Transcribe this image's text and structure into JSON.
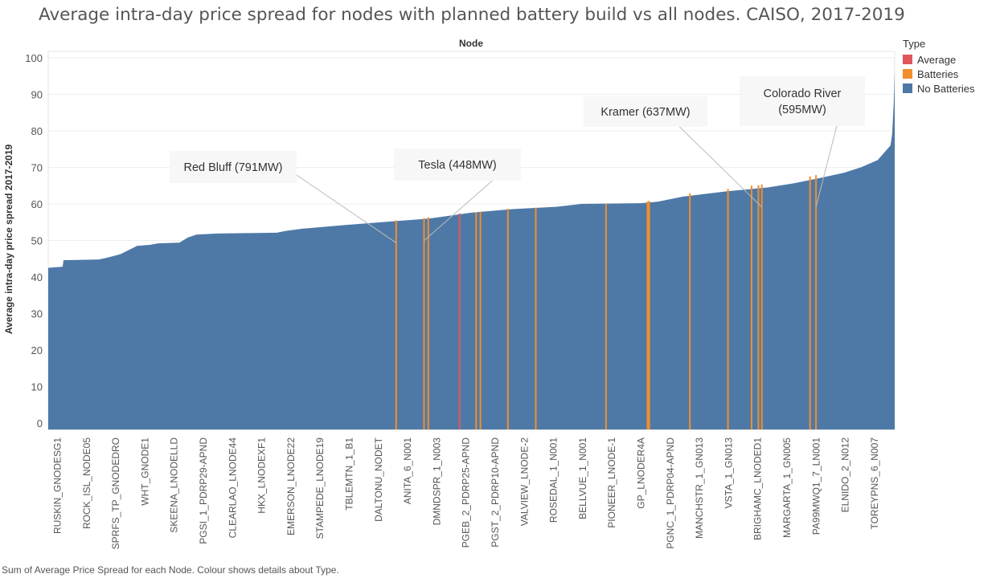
{
  "title": "Average intra-day price spread for nodes with planned battery build vs all nodes. CAISO, 2017-2019",
  "footnote": "Sum of Average Price Spread for each Node.  Colour shows details about Type.",
  "legend": {
    "title": "Type",
    "items": [
      {
        "label": "Average",
        "color": "#e15759"
      },
      {
        "label": "Batteries",
        "color": "#f28e2b"
      },
      {
        "label": "No Batteries",
        "color": "#4e79a7"
      }
    ]
  },
  "chart_data": {
    "type": "area",
    "xlabel": "Node",
    "ylabel": "Average intra-day price spread 2017-2019",
    "ylim": [
      0,
      100
    ],
    "yticks": [
      0,
      10,
      20,
      30,
      40,
      50,
      60,
      70,
      80,
      90,
      100
    ],
    "x_tick_labels": [
      "RUSKIN_GNODESG1",
      "ROCK_ISL_NODE05",
      "SPRFS_TP_GNODEDRO",
      "WHT_GNODE1",
      "SKEENA_LNODELLD",
      "PGSI_1_PDRP29-APND",
      "CLEARLAO_LNODE44",
      "HKX_LNODEXF1",
      "EMERSON_LNODE22",
      "STAMPEDE_LNODE19",
      "TBLEMTN_1_B1",
      "DALTONU_NODET",
      "ANITA_6_N001",
      "DMNDSPR_1_N003",
      "PGEB_2_PDRP25-APND",
      "PGST_2_PDRP10-APND",
      "VALVIEW_LNODE-2",
      "ROSEDAL_1_N001",
      "BELLVUE_1_N001",
      "PIONEER_LNODE-1",
      "GP_LNODER4A",
      "PGNC_1_PDRP04-APND",
      "MANCHSTR_1_GN013",
      "VSTA_1_GN013",
      "BRIGHAMC_LNODED1",
      "MARGARTA_1_GN005",
      "PA99MWQ1_7_LN001",
      "ELNIDO_2_N012",
      "TOREYPNS_6_N007"
    ],
    "profile": [
      [
        0,
        42.5
      ],
      [
        0.017,
        42.8
      ],
      [
        0.018,
        44.6
      ],
      [
        0.06,
        44.8
      ],
      [
        0.07,
        45.3
      ],
      [
        0.085,
        46.2
      ],
      [
        0.105,
        48.5
      ],
      [
        0.12,
        48.8
      ],
      [
        0.13,
        49.2
      ],
      [
        0.155,
        49.4
      ],
      [
        0.165,
        50.8
      ],
      [
        0.175,
        51.6
      ],
      [
        0.2,
        51.9
      ],
      [
        0.27,
        52.1
      ],
      [
        0.28,
        52.6
      ],
      [
        0.3,
        53.2
      ],
      [
        0.35,
        54.2
      ],
      [
        0.4,
        55.1
      ],
      [
        0.45,
        56.0
      ],
      [
        0.5,
        57.6
      ],
      [
        0.55,
        58.6
      ],
      [
        0.6,
        59.2
      ],
      [
        0.63,
        60.0
      ],
      [
        0.7,
        60.2
      ],
      [
        0.72,
        60.6
      ],
      [
        0.75,
        62.0
      ],
      [
        0.8,
        63.4
      ],
      [
        0.85,
        64.5
      ],
      [
        0.88,
        65.6
      ],
      [
        0.91,
        67.0
      ],
      [
        0.94,
        68.5
      ],
      [
        0.96,
        70.0
      ],
      [
        0.98,
        72.0
      ],
      [
        0.995,
        76.0
      ],
      [
        0.997,
        79.0
      ],
      [
        0.999,
        88.0
      ],
      [
        1.0,
        96.5
      ]
    ],
    "series": [
      {
        "name": "No Batteries",
        "color": "#4e79a7"
      },
      {
        "name": "Batteries",
        "color": "#f28e2b",
        "points": [
          [
            0.411,
            55.5
          ],
          [
            0.444,
            56.1
          ],
          [
            0.449,
            56.3
          ],
          [
            0.5055,
            57.7
          ],
          [
            0.5105,
            57.9
          ],
          [
            0.543,
            58.7
          ],
          [
            0.576,
            59.0
          ],
          [
            0.659,
            60.0
          ],
          [
            0.708,
            60.6
          ],
          [
            0.709,
            60.7
          ],
          [
            0.71,
            60.8
          ],
          [
            0.758,
            62.9
          ],
          [
            0.803,
            64.1
          ],
          [
            0.831,
            65.0
          ],
          [
            0.839,
            65.1
          ],
          [
            0.843,
            65.3
          ],
          [
            0.9,
            67.5
          ],
          [
            0.907,
            67.9
          ]
        ]
      },
      {
        "name": "Average",
        "color": "#e15759",
        "points": [
          [
            0.486,
            57.4
          ]
        ]
      }
    ],
    "annotations": [
      {
        "text": "Red Bluff (791MW)",
        "x": 0.411,
        "y": 55.5
      },
      {
        "text": "Tesla (448MW)",
        "x": 0.444,
        "y": 56.1
      },
      {
        "text": "Kramer (637MW)",
        "x": 0.843,
        "y": 65.3
      },
      {
        "text": "Colorado River\n(595MW)",
        "x": 0.907,
        "y": 67.9
      }
    ]
  }
}
